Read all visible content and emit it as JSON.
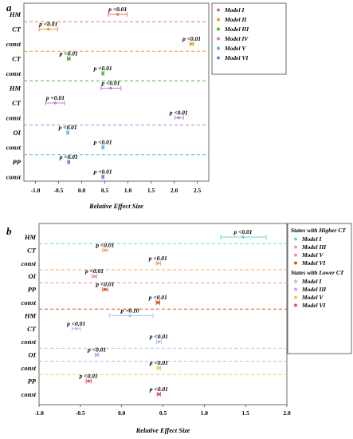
{
  "chart_data": [
    {
      "type": "forest",
      "panel": "a",
      "xlabel": "Relative Effect Size",
      "xlim": [
        -1.25,
        2.75
      ],
      "xticks": [
        -1.0,
        -0.5,
        0.0,
        0.5,
        1.0,
        1.5,
        2.0,
        2.5
      ],
      "xtick_labels": [
        "-1.0",
        "-0.5",
        "0.0",
        "0.5",
        "1.0",
        "1.5",
        "2.0",
        "2.5"
      ],
      "legend": {
        "placement": "top-right",
        "entries": [
          {
            "label": "Model I",
            "color": "#e8706a"
          },
          {
            "label": "Model II",
            "color": "#e0a13a"
          },
          {
            "label": "Model III",
            "color": "#52b43f"
          },
          {
            "label": "Model IV",
            "color": "#c17ee0"
          },
          {
            "label": "Model V",
            "color": "#5bb8e6"
          },
          {
            "label": "Model VI",
            "color": "#6f7fd8"
          }
        ]
      },
      "rows": [
        {
          "label": "HM",
          "estimate": 0.78,
          "lower": 0.58,
          "upper": 0.98,
          "p_text": "p <0.01",
          "color": "#e8706a"
        },
        {
          "label": "CT",
          "estimate": -0.72,
          "lower": -0.92,
          "upper": -0.52,
          "p_text": "p <0.01",
          "color": "#e0a13a"
        },
        {
          "label": "const",
          "estimate": 2.38,
          "lower": 2.34,
          "upper": 2.42,
          "p_text": "p <0.01",
          "color": "#e0a13a"
        },
        {
          "label": "CT",
          "estimate": -0.28,
          "lower": -0.31,
          "upper": -0.25,
          "p_text": "p <0.01",
          "color": "#52b43f"
        },
        {
          "label": "const",
          "estimate": 0.46,
          "lower": 0.44,
          "upper": 0.48,
          "p_text": "p <0.01",
          "color": "#52b43f"
        },
        {
          "label": "HM",
          "estimate": 0.63,
          "lower": 0.42,
          "upper": 0.85,
          "p_text": "p <0.01",
          "color": "#c17ee0"
        },
        {
          "label": "CT",
          "estimate": -0.57,
          "lower": -0.78,
          "upper": -0.37,
          "p_text": "p <0.01",
          "color": "#c17ee0"
        },
        {
          "label": "const",
          "estimate": 2.1,
          "lower": 2.02,
          "upper": 2.2,
          "p_text": "p <0.01",
          "color": "#c17ee0"
        },
        {
          "label": "OI",
          "estimate": -0.3,
          "lower": -0.32,
          "upper": -0.28,
          "p_text": "p <0.01",
          "color": "#5bb8e6"
        },
        {
          "label": "const",
          "estimate": 0.46,
          "lower": 0.44,
          "upper": 0.48,
          "p_text": "p <0.01",
          "color": "#5bb8e6"
        },
        {
          "label": "PP",
          "estimate": -0.28,
          "lower": -0.3,
          "upper": -0.26,
          "p_text": "p <0.01",
          "color": "#6f7fd8"
        },
        {
          "label": "const",
          "estimate": 0.46,
          "lower": 0.44,
          "upper": 0.48,
          "p_text": "p <0.01",
          "color": "#6f7fd8"
        }
      ],
      "separators": [
        {
          "after_row": 0,
          "color": "#e8706a"
        },
        {
          "after_row": 2,
          "color": "#e0a13a"
        },
        {
          "after_row": 4,
          "color": "#52b43f"
        },
        {
          "after_row": 7,
          "color": "#c17ee0"
        },
        {
          "after_row": 9,
          "color": "#5bb8e6"
        }
      ]
    },
    {
      "type": "forest",
      "panel": "b",
      "xlabel": "Relative Effect Size",
      "xlim": [
        -1.0,
        2.0
      ],
      "xticks": [
        -1.0,
        -0.5,
        0.0,
        0.5,
        1.0,
        1.5,
        2.0
      ],
      "xtick_labels": [
        "-1.0",
        "-0.5",
        "0.0",
        "0.5",
        "1.0",
        "1.5",
        "2.0"
      ],
      "legend": {
        "placement": "top-right",
        "groups": [
          {
            "title": "States with Higher CT",
            "entries": [
              {
                "label": "Model I",
                "color": "#6fd3cf"
              },
              {
                "label": "Model III",
                "color": "#f0a873"
              },
              {
                "label": "Model V",
                "color": "#f28bb3"
              },
              {
                "label": "Model VI",
                "color": "#d8551f"
              }
            ]
          },
          {
            "title": "States with Lower CT",
            "entries": [
              {
                "label": "Model I",
                "color": "#a9c7ee"
              },
              {
                "label": "Model III",
                "color": "#c4a6e6"
              },
              {
                "label": "Model V",
                "color": "#e8c95a"
              },
              {
                "label": "Model VI",
                "color": "#e8506a"
              }
            ]
          }
        ]
      },
      "rows": [
        {
          "label": "HM",
          "estimate": 1.47,
          "lower": 1.2,
          "upper": 1.75,
          "p_text": "p <0.01",
          "color": "#6fd3cf"
        },
        {
          "label": "CT",
          "estimate": -0.2,
          "lower": -0.23,
          "upper": -0.17,
          "p_text": "p <0.01",
          "color": "#f0a873"
        },
        {
          "label": "const",
          "estimate": 0.44,
          "lower": 0.42,
          "upper": 0.47,
          "p_text": "p <0.01",
          "color": "#f0a873"
        },
        {
          "label": "OI",
          "estimate": -0.33,
          "lower": -0.36,
          "upper": -0.3,
          "p_text": "p <0.01",
          "color": "#f28bb3"
        },
        {
          "label": "PP",
          "estimate": -0.2,
          "lower": -0.23,
          "upper": -0.17,
          "p_text": "p <0.01",
          "color": "#d8551f"
        },
        {
          "label": "const",
          "estimate": 0.44,
          "lower": 0.42,
          "upper": 0.46,
          "p_text": "p <0.01",
          "color": "#d8551f"
        },
        {
          "label": "HM",
          "estimate": 0.1,
          "lower": -0.15,
          "upper": 0.38,
          "p_text": "p >0.10",
          "color": "#a9c7ee"
        },
        {
          "label": "CT",
          "estimate": -0.55,
          "lower": -0.6,
          "upper": -0.5,
          "p_text": "p <0.01",
          "color": "#a9c7ee"
        },
        {
          "label": "const",
          "estimate": 0.45,
          "lower": 0.42,
          "upper": 0.48,
          "p_text": "p <0.01",
          "color": "#a9c7ee"
        },
        {
          "label": "OI",
          "estimate": -0.3,
          "lower": -0.32,
          "upper": -0.28,
          "p_text": "p <0.01",
          "color": "#c4a6e6"
        },
        {
          "label": "const",
          "estimate": 0.45,
          "lower": 0.43,
          "upper": 0.47,
          "p_text": "p <0.01",
          "color": "#e8c95a"
        },
        {
          "label": "PP",
          "estimate": -0.4,
          "lower": -0.43,
          "upper": -0.37,
          "p_text": "p <0.01",
          "color": "#e8506a"
        },
        {
          "label": "const",
          "estimate": 0.45,
          "lower": 0.43,
          "upper": 0.47,
          "p_text": "p <0.01",
          "color": "#e8506a"
        }
      ],
      "separators": [
        {
          "after_row": 0,
          "color": "#6fd3cf"
        },
        {
          "after_row": 2,
          "color": "#f0a873"
        },
        {
          "after_row": 3,
          "color": "#f28bb3"
        },
        {
          "after_row": 5,
          "color": "#d8551f"
        },
        {
          "after_row": 8,
          "color": "#a9c7ee"
        },
        {
          "after_row": 9,
          "color": "#c4a6e6"
        },
        {
          "after_row": 10,
          "color": "#e8c95a"
        }
      ]
    }
  ]
}
